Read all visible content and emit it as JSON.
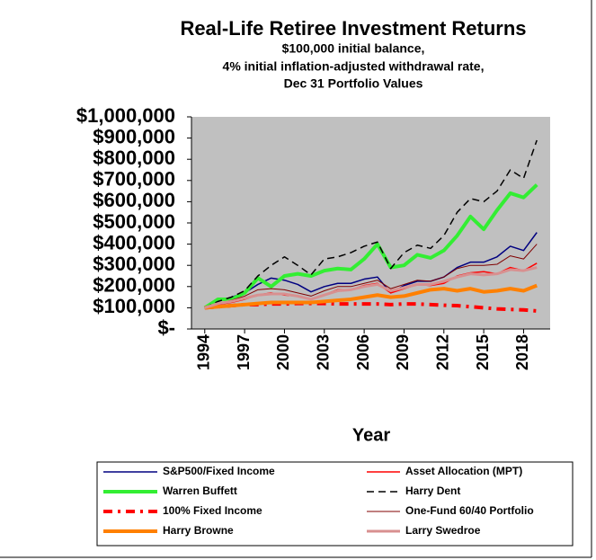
{
  "chart_data": {
    "type": "line",
    "title": "Real-Life Retiree Investment Returns",
    "subtitle": [
      "$100,000 initial balance,",
      "4% initial inflation-adjusted withdrawal rate,",
      "Dec 31 Portfolio Values"
    ],
    "x_label": "Year",
    "x": [
      1994,
      1995,
      1996,
      1997,
      1998,
      1999,
      2000,
      2001,
      2002,
      2003,
      2004,
      2005,
      2006,
      2007,
      2008,
      2009,
      2010,
      2011,
      2012,
      2013,
      2014,
      2015,
      2016,
      2017,
      2018,
      2019
    ],
    "xlim": [
      1993,
      2020
    ],
    "xticks": [
      1994,
      1997,
      2000,
      2003,
      2006,
      2009,
      2012,
      2015,
      2018
    ],
    "ylim": [
      0,
      1000000
    ],
    "yticks": [
      {
        "value": 0,
        "label": "$-"
      },
      {
        "value": 100000,
        "label": "$100,000"
      },
      {
        "value": 200000,
        "label": "$200,000"
      },
      {
        "value": 300000,
        "label": "$300,000"
      },
      {
        "value": 400000,
        "label": "$400,000"
      },
      {
        "value": 500000,
        "label": "$500,000"
      },
      {
        "value": 600000,
        "label": "$600,000"
      },
      {
        "value": 700000,
        "label": "$700,000"
      },
      {
        "value": 800000,
        "label": "$800,000"
      },
      {
        "value": 900000,
        "label": "$900,000"
      },
      {
        "value": 1000000,
        "label": "$1,000,000"
      }
    ],
    "plot_background": "#c0c0c0",
    "series": [
      {
        "name": "S&P500/Fixed Income",
        "color": "#000080",
        "width": 1.5,
        "dash": "solid",
        "values": [
          100000,
          130000,
          150000,
          170000,
          210000,
          240000,
          230000,
          210000,
          175000,
          200000,
          215000,
          215000,
          235000,
          245000,
          170000,
          205000,
          225000,
          225000,
          245000,
          290000,
          315000,
          315000,
          340000,
          390000,
          370000,
          455000
        ]
      },
      {
        "name": "Asset Allocation (MPT)",
        "color": "#ff0000",
        "width": 1.5,
        "dash": "solid",
        "values": [
          100000,
          115000,
          125000,
          140000,
          160000,
          170000,
          160000,
          155000,
          140000,
          160000,
          185000,
          185000,
          205000,
          215000,
          170000,
          190000,
          210000,
          205000,
          215000,
          250000,
          265000,
          270000,
          260000,
          290000,
          275000,
          310000
        ]
      },
      {
        "name": "Warren Buffett",
        "color": "#33ee33",
        "width": 4,
        "dash": "solid",
        "values": [
          100000,
          140000,
          140000,
          170000,
          240000,
          200000,
          250000,
          260000,
          250000,
          275000,
          285000,
          280000,
          330000,
          400000,
          290000,
          300000,
          350000,
          335000,
          370000,
          440000,
          530000,
          470000,
          560000,
          640000,
          620000,
          680000
        ]
      },
      {
        "name": "Harry Dent",
        "color": "#000000",
        "width": 1.5,
        "dash": "dashed",
        "values": [
          100000,
          130000,
          150000,
          180000,
          250000,
          300000,
          340000,
          300000,
          255000,
          330000,
          340000,
          360000,
          390000,
          410000,
          285000,
          360000,
          395000,
          380000,
          440000,
          550000,
          615000,
          600000,
          650000,
          750000,
          710000,
          890000
        ]
      },
      {
        "name": "100% Fixed Income",
        "color": "#ff0000",
        "width": 4,
        "dash": "dash-dot",
        "values": [
          100000,
          105000,
          110000,
          115000,
          115000,
          118000,
          118000,
          120000,
          120000,
          120000,
          118000,
          118000,
          118000,
          118000,
          115000,
          118000,
          118000,
          115000,
          112000,
          110000,
          105000,
          100000,
          95000,
          92000,
          90000,
          85000
        ]
      },
      {
        "name": "One-Fund 60/40 Portfolio",
        "color": "#800000",
        "width": 1,
        "dash": "solid",
        "values": [
          100000,
          120000,
          135000,
          155000,
          185000,
          190000,
          185000,
          170000,
          155000,
          180000,
          200000,
          200000,
          215000,
          230000,
          190000,
          210000,
          230000,
          225000,
          245000,
          285000,
          300000,
          300000,
          305000,
          345000,
          330000,
          400000
        ]
      },
      {
        "name": "Harry Browne",
        "color": "#ff8000",
        "width": 4,
        "dash": "solid",
        "values": [
          100000,
          105000,
          110000,
          115000,
          120000,
          125000,
          125000,
          125000,
          125000,
          130000,
          135000,
          140000,
          150000,
          160000,
          150000,
          155000,
          170000,
          185000,
          190000,
          180000,
          190000,
          175000,
          180000,
          190000,
          180000,
          205000
        ]
      },
      {
        "name": "Larry Swedroe",
        "color": "#d89090",
        "width": 3,
        "dash": "solid",
        "values": [
          100000,
          120000,
          130000,
          145000,
          160000,
          165000,
          165000,
          155000,
          140000,
          160000,
          180000,
          185000,
          200000,
          210000,
          180000,
          195000,
          210000,
          210000,
          225000,
          245000,
          260000,
          255000,
          260000,
          280000,
          275000,
          290000
        ]
      }
    ]
  }
}
